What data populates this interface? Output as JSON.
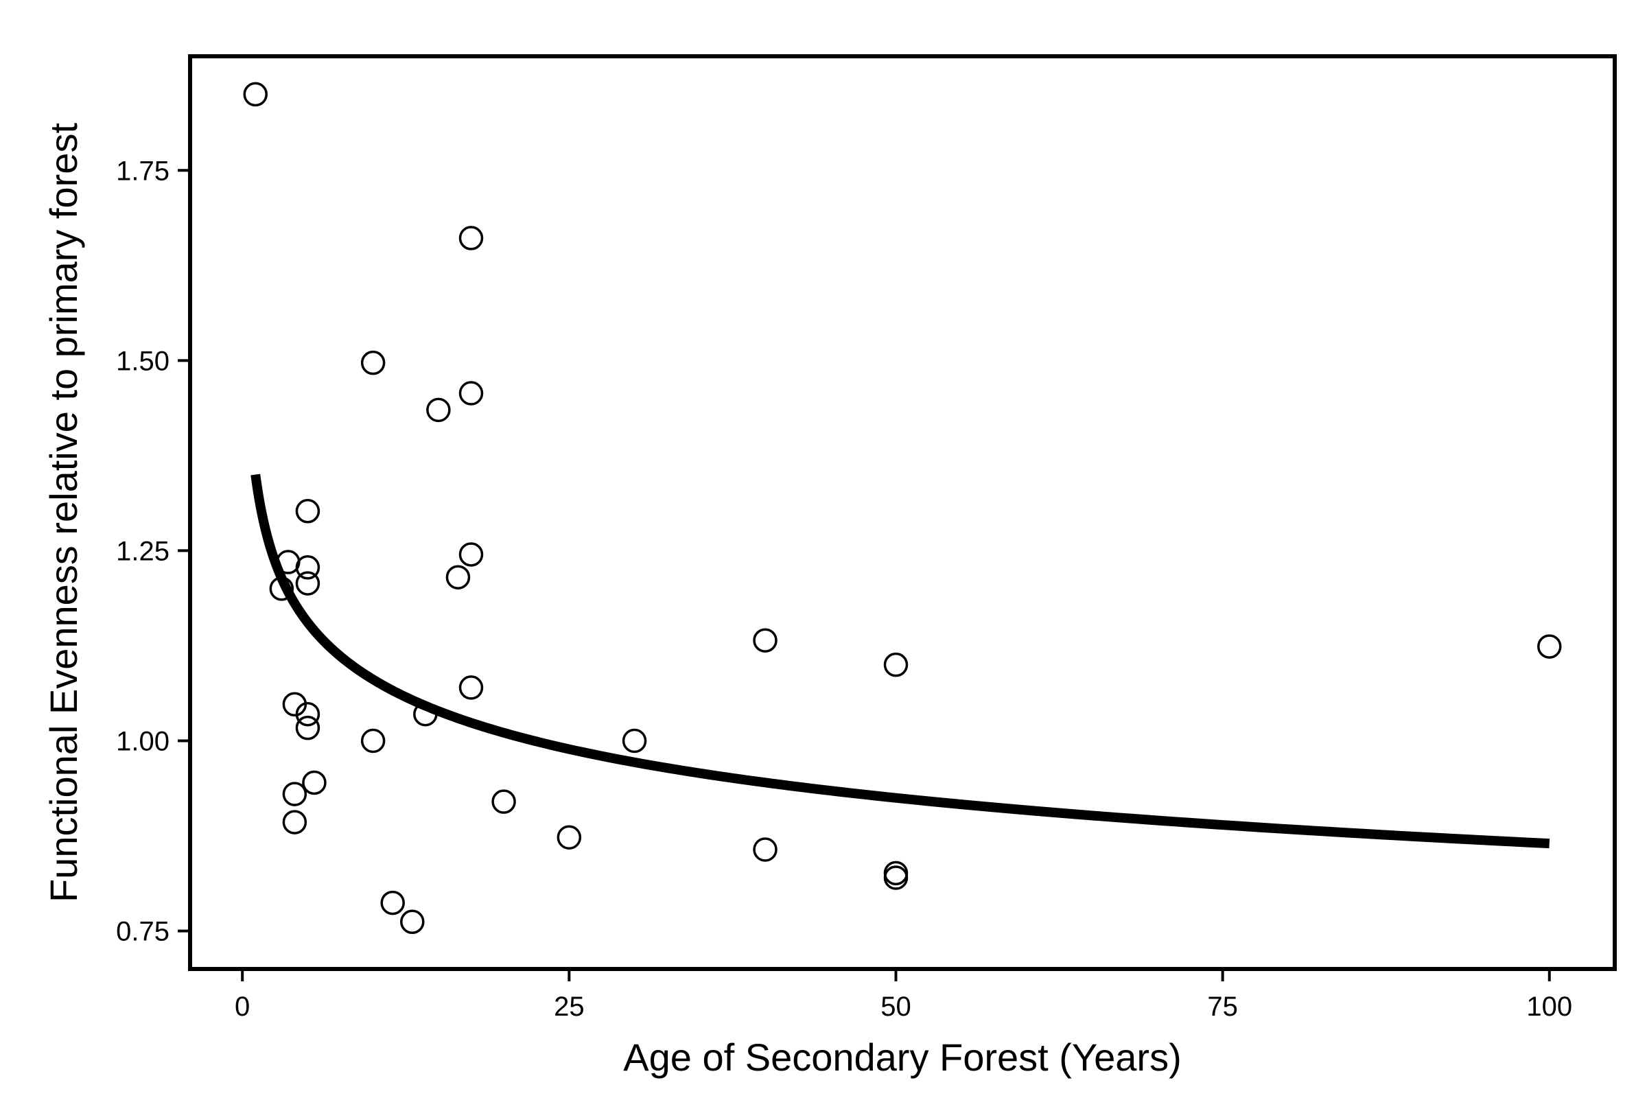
{
  "chart_data": {
    "type": "scatter",
    "title": "",
    "xlabel": "Age of Secondary Forest (Years)",
    "ylabel": "Functional Evenness relative to primary forest",
    "xlim": [
      -4,
      105
    ],
    "ylim": [
      0.7,
      1.9
    ],
    "x_ticks": [
      0,
      25,
      50,
      75,
      100
    ],
    "x_tick_labels": [
      "0",
      "25",
      "50",
      "75",
      "100"
    ],
    "y_ticks": [
      0.75,
      1.0,
      1.25,
      1.5,
      1.75
    ],
    "y_tick_labels": [
      "0.75",
      "1.00",
      "1.25",
      "1.50",
      "1.75"
    ],
    "grid": false,
    "legend": "none",
    "series": [
      {
        "kind": "points",
        "marker": "open-circle",
        "x": [
          1,
          3,
          3.5,
          4,
          4,
          4,
          5,
          5,
          5,
          5,
          5,
          5.5,
          10,
          10,
          11.5,
          13,
          14,
          15,
          16.5,
          17.5,
          17.5,
          17.5,
          17.5,
          20,
          25,
          30,
          40,
          40,
          50,
          50,
          50,
          100
        ],
        "y": [
          1.85,
          1.2,
          1.235,
          1.048,
          0.93,
          0.893,
          1.302,
          1.228,
          1.207,
          1.035,
          1.017,
          0.945,
          1.497,
          1.0,
          0.787,
          0.762,
          1.035,
          1.435,
          1.215,
          1.661,
          1.457,
          1.245,
          1.07,
          0.92,
          0.873,
          1.0,
          1.132,
          0.857,
          1.1,
          0.826,
          0.82,
          1.124
        ]
      },
      {
        "kind": "fitted-curve",
        "model": "power",
        "x_start": 1,
        "x_end": 100,
        "y_at_start": 1.35,
        "y_at_end": 0.865
      }
    ]
  }
}
